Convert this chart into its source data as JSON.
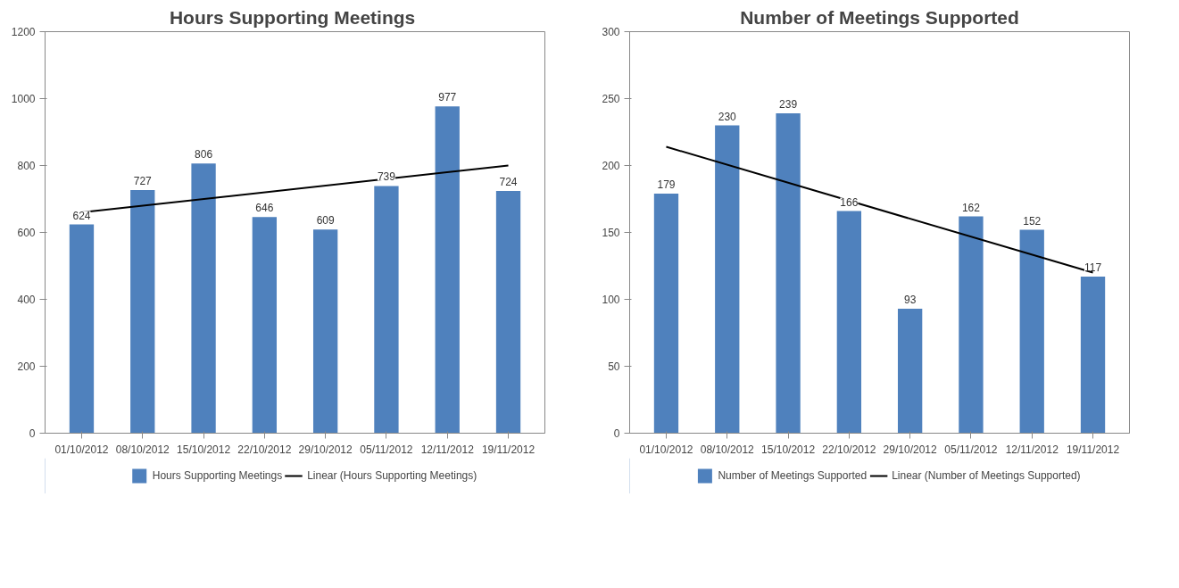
{
  "chart_data": [
    {
      "type": "bar",
      "title": "Hours Supporting  Meetings",
      "categories": [
        "01/10/2012",
        "08/10/2012",
        "15/10/2012",
        "22/10/2012",
        "29/10/2012",
        "05/11/2012",
        "12/11/2012",
        "19/11/2012"
      ],
      "series": [
        {
          "name": "Hours Supporting Meetings",
          "color": "#4f81bd",
          "values": [
            624,
            727,
            806,
            646,
            609,
            739,
            977,
            724
          ],
          "value_labels": [
            "624",
            "727",
            "806",
            "646",
            "609",
            "739",
            "977",
            "724"
          ]
        },
        {
          "name": "Linear (Hours Supporting Meetings)",
          "type": "line",
          "color": "#000000",
          "x": [
            "01/10/2012",
            "19/11/2012"
          ],
          "values": [
            660,
            800
          ]
        }
      ],
      "ylim": [
        0,
        1200
      ],
      "yticks": [
        0,
        200,
        400,
        600,
        800,
        1000,
        1200
      ],
      "grid": false,
      "legend": "bottom"
    },
    {
      "type": "bar",
      "title": "Number of Meetings Supported",
      "categories": [
        "01/10/2012",
        "08/10/2012",
        "15/10/2012",
        "22/10/2012",
        "29/10/2012",
        "05/11/2012",
        "12/11/2012",
        "19/11/2012"
      ],
      "series": [
        {
          "name": "Number of Meetings Supported",
          "color": "#4f81bd",
          "values": [
            179,
            230,
            239,
            166,
            93,
            162,
            152,
            117
          ],
          "value_labels": [
            "179",
            "230",
            "239",
            "166",
            "93",
            "162",
            "152",
            "117"
          ]
        },
        {
          "name": "Linear (Number of Meetings Supported)",
          "type": "line",
          "color": "#000000",
          "x": [
            "01/10/2012",
            "19/11/2012"
          ],
          "values": [
            214,
            120
          ]
        }
      ],
      "ylim": [
        0,
        300
      ],
      "yticks": [
        0,
        50,
        100,
        150,
        200,
        250,
        300
      ],
      "grid": false,
      "legend": "bottom"
    }
  ]
}
